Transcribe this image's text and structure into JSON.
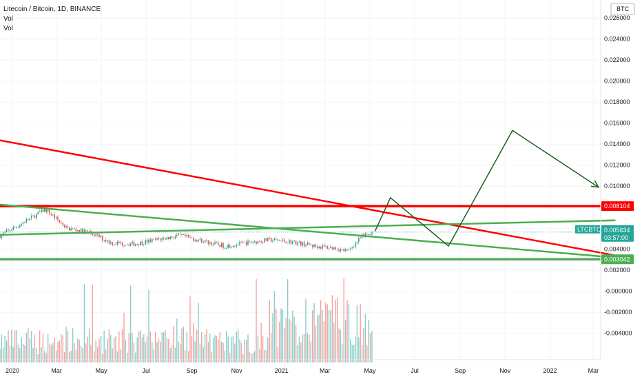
{
  "legend": {
    "symbol_line": "Litecoin / Bitcoin, 1D, BINANCE",
    "vol1": "Vol",
    "vol2": "Vol"
  },
  "currency_label": "BTC",
  "price_tag": {
    "symbol": "LTCBTC",
    "price": "0.005634",
    "countdown": "03:57:00",
    "color": "#26a69a"
  },
  "level_tags": [
    {
      "label": "0.008104",
      "value": 0.008104,
      "color": "#ff0000"
    },
    {
      "label": "0.003042",
      "value": 0.003042,
      "color": "#4caf50"
    }
  ],
  "chart_data": {
    "type": "line",
    "title": "Litecoin / Bitcoin, 1D, BINANCE",
    "x_ticks": [
      "2020",
      "Mar",
      "May",
      "Jul",
      "Sep",
      "Nov",
      "2021",
      "Mar",
      "May",
      "Jul",
      "Sep",
      "Nov",
      "2022",
      "Mar"
    ],
    "y_ticks": [
      "0.026000",
      "0.024000",
      "0.022000",
      "0.020000",
      "0.018000",
      "0.016000",
      "0.014000",
      "0.012000",
      "0.010000",
      "0.006000",
      "0.004000",
      "0.002000",
      "-0.000000",
      "-0.002000",
      "-0.004000"
    ],
    "ylim": [
      -0.0054,
      0.0268
    ],
    "price_series": {
      "x": [
        "2019-12-15",
        "2020-01-15",
        "2020-02-15",
        "2020-03-15",
        "2020-04-15",
        "2020-05-15",
        "2020-06-15",
        "2020-07-15",
        "2020-08-15",
        "2020-09-15",
        "2020-10-15",
        "2020-11-15",
        "2020-12-15",
        "2021-01-15",
        "2021-02-15",
        "2021-03-15",
        "2021-04-01",
        "2021-04-20",
        "2021-05-04"
      ],
      "y": [
        0.0053,
        0.0065,
        0.0078,
        0.006,
        0.0056,
        0.0046,
        0.0045,
        0.0049,
        0.0053,
        0.0048,
        0.0043,
        0.0046,
        0.0049,
        0.0047,
        0.0043,
        0.0041,
        0.0038,
        0.0052,
        0.00563
      ]
    },
    "volume": {
      "color_up": "#26a69a",
      "color_down": "#ef5350"
    },
    "horizontal_levels": [
      {
        "value": 0.008104,
        "color": "#ff0000"
      },
      {
        "value": 0.003042,
        "color": "#4caf50"
      }
    ],
    "trendlines": [
      {
        "color": "#ff0000",
        "x": [
          "2019-10-01",
          "2022-03-31"
        ],
        "y": [
          0.01535,
          0.0034
        ]
      },
      {
        "color": "#4caf50",
        "x": [
          "2019-10-01",
          "2022-03-31"
        ],
        "y": [
          0.0087,
          0.0032
        ]
      },
      {
        "color": "#4caf50",
        "x": [
          "2019-10-01",
          "2022-03-31"
        ],
        "y": [
          0.00525,
          0.00675
        ]
      }
    ],
    "projection": {
      "color": "#1b5e20",
      "x": [
        "2021-05-08",
        "2021-05-29",
        "2021-08-16",
        "2021-11-11",
        "2022-03-08"
      ],
      "y": [
        0.0057,
        0.0089,
        0.0043,
        0.0153,
        0.0099
      ]
    }
  }
}
